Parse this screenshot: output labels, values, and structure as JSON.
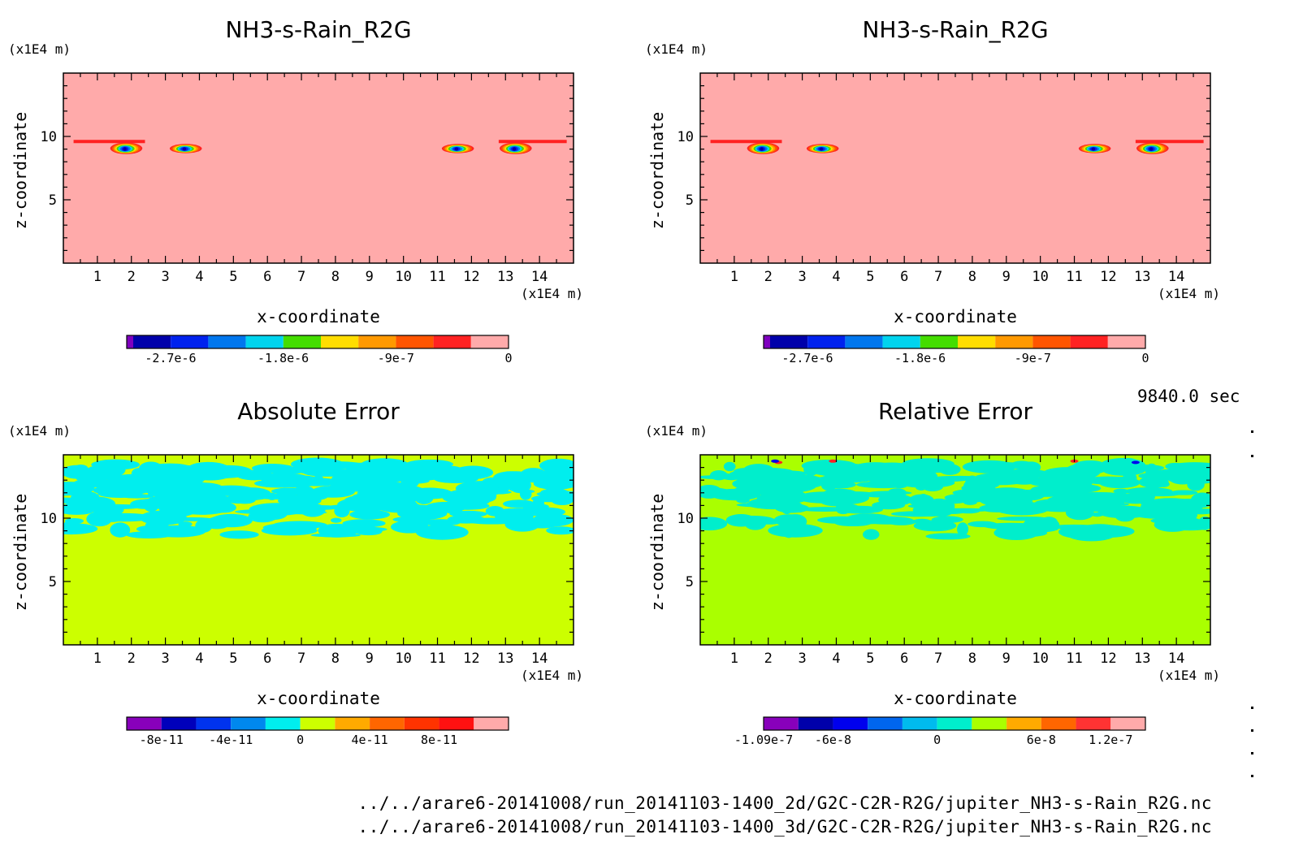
{
  "time_label": "9840.0 sec",
  "footer": {
    "file_2d": "../../arare6-20141008/run_20141103-1400_2d/G2C-C2R-R2G/jupiter_NH3-s-Rain_R2G.nc",
    "file_3d": "../../arare6-20141008/run_20141103-1400_3d/G2C-C2R-R2G/jupiter_NH3-s-Rain_R2G.nc"
  },
  "chart_data": [
    {
      "type": "heatmap",
      "id": "panel-2d",
      "title": "NH3-s-Rain_R2G",
      "xlabel": "x-coordinate",
      "ylabel": "z-coordinate",
      "x_unit": "(x1E4 m)",
      "y_unit": "(x1E4 m)",
      "xlim": [
        0,
        15
      ],
      "ylim": [
        0,
        15
      ],
      "x_ticks": [
        1,
        2,
        3,
        4,
        5,
        6,
        7,
        8,
        9,
        10,
        11,
        12,
        13,
        14
      ],
      "y_ticks": [
        5,
        10
      ],
      "background_color": "#ffaaaa",
      "features": [
        {
          "x": 1.85,
          "z": 9.0,
          "rx": 0.45,
          "rz": 0.4,
          "min": -3e-06
        },
        {
          "x": 3.6,
          "z": 9.0,
          "rx": 0.45,
          "rz": 0.3,
          "min": -2.8e-06
        },
        {
          "x": 11.6,
          "z": 9.0,
          "rx": 0.45,
          "rz": 0.3,
          "min": -2.8e-06
        },
        {
          "x": 13.3,
          "z": 9.0,
          "rx": 0.45,
          "rz": 0.4,
          "min": -3e-06
        }
      ],
      "colorbar": {
        "colors": [
          "#7f00bf",
          "#0000aa",
          "#0022ee",
          "#0077ee",
          "#00d4ee",
          "#44dd00",
          "#ffdd00",
          "#ff9900",
          "#ff5500",
          "#ff2222",
          "#ffaaaa"
        ],
        "tick_labels": [
          "-2.7e-6",
          "-1.8e-6",
          "-9e-7",
          "0"
        ]
      }
    },
    {
      "type": "heatmap",
      "id": "panel-3d",
      "title": "NH3-s-Rain_R2G",
      "xlabel": "x-coordinate",
      "ylabel": "z-coordinate",
      "x_unit": "(x1E4 m)",
      "y_unit": "(x1E4 m)",
      "xlim": [
        0,
        15
      ],
      "ylim": [
        0,
        15
      ],
      "x_ticks": [
        1,
        2,
        3,
        4,
        5,
        6,
        7,
        8,
        9,
        10,
        11,
        12,
        13,
        14
      ],
      "y_ticks": [
        5,
        10
      ],
      "background_color": "#ffaaaa",
      "features": [
        {
          "x": 1.85,
          "z": 9.0,
          "rx": 0.45,
          "rz": 0.4,
          "min": -3e-06
        },
        {
          "x": 3.6,
          "z": 9.0,
          "rx": 0.45,
          "rz": 0.3,
          "min": -2.8e-06
        },
        {
          "x": 11.6,
          "z": 9.0,
          "rx": 0.45,
          "rz": 0.3,
          "min": -2.8e-06
        },
        {
          "x": 13.3,
          "z": 9.0,
          "rx": 0.45,
          "rz": 0.4,
          "min": -3e-06
        }
      ],
      "colorbar": {
        "colors": [
          "#7f00bf",
          "#0000aa",
          "#0022ee",
          "#0077ee",
          "#00d4ee",
          "#44dd00",
          "#ffdd00",
          "#ff9900",
          "#ff5500",
          "#ff2222",
          "#ffaaaa"
        ],
        "tick_labels": [
          "-2.7e-6",
          "-1.8e-6",
          "-9e-7",
          "0"
        ]
      }
    },
    {
      "type": "heatmap",
      "id": "panel-abs-error",
      "title": "Absolute Error",
      "xlabel": "x-coordinate",
      "ylabel": "z-coordinate",
      "x_unit": "(x1E4 m)",
      "y_unit": "(x1E4 m)",
      "xlim": [
        0,
        15
      ],
      "ylim": [
        0,
        15
      ],
      "x_ticks": [
        1,
        2,
        3,
        4,
        5,
        6,
        7,
        8,
        9,
        10,
        11,
        12,
        13,
        14
      ],
      "y_ticks": [
        5,
        10
      ],
      "background_color": "#ccff00",
      "anomaly_band_z": [
        8.5,
        14.3
      ],
      "anomaly_color": "#00eeee",
      "colorbar": {
        "colors": [
          "#8800bb",
          "#0000bb",
          "#0033ee",
          "#0088ee",
          "#00eeee",
          "#ccff00",
          "#ffaa00",
          "#ff6600",
          "#ff3300",
          "#ff1111",
          "#ffaaaa"
        ],
        "tick_labels": [
          "-8e-11",
          "-4e-11",
          "0",
          "4e-11",
          "8e-11"
        ]
      }
    },
    {
      "type": "heatmap",
      "id": "panel-rel-error",
      "title": "Relative Error",
      "xlabel": "x-coordinate",
      "ylabel": "z-coordinate",
      "x_unit": "(x1E4 m)",
      "y_unit": "(x1E4 m)",
      "xlim": [
        0,
        15
      ],
      "ylim": [
        0,
        15
      ],
      "x_ticks": [
        1,
        2,
        3,
        4,
        5,
        6,
        7,
        8,
        9,
        10,
        11,
        12,
        13,
        14
      ],
      "y_ticks": [
        5,
        10
      ],
      "background_color": "#aaff00",
      "anomaly_band_z": [
        8.5,
        14.3
      ],
      "anomaly_color": "#00eecc",
      "colorbar": {
        "colors": [
          "#8800bb",
          "#0000aa",
          "#0000ee",
          "#0066ee",
          "#00bbee",
          "#00eecc",
          "#aaff00",
          "#ffaa00",
          "#ff6600",
          "#ff3333",
          "#ffaaaa"
        ],
        "tick_labels": [
          "-1.09e-7",
          "-6e-8",
          "0",
          "6e-8",
          "1.2e-7"
        ]
      }
    }
  ]
}
